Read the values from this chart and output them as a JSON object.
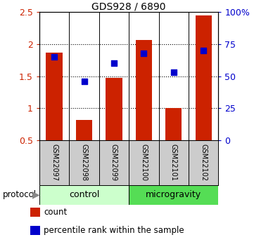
{
  "title": "GDS928 / 6890",
  "samples": [
    "GSM22097",
    "GSM22098",
    "GSM22099",
    "GSM22100",
    "GSM22101",
    "GSM22102"
  ],
  "bar_values": [
    1.87,
    0.82,
    1.47,
    2.06,
    1.0,
    2.45
  ],
  "bar_bottom": 0.5,
  "percentile_values": [
    65,
    46,
    60,
    68,
    53,
    70
  ],
  "ylim_left": [
    0.5,
    2.5
  ],
  "ylim_right": [
    0,
    100
  ],
  "yticks_left": [
    0.5,
    1.0,
    1.5,
    2.0,
    2.5
  ],
  "ytick_labels_left": [
    "0.5",
    "1",
    "1.5",
    "2",
    "2.5"
  ],
  "yticks_right": [
    0,
    25,
    50,
    75,
    100
  ],
  "ytick_labels_right": [
    "0",
    "25",
    "50",
    "75",
    "100%"
  ],
  "dotted_lines": [
    1.0,
    1.5,
    2.0
  ],
  "bar_color": "#cc2200",
  "square_color": "#0000cc",
  "protocol_groups": [
    {
      "label": "control",
      "start": 0,
      "end": 3,
      "color": "#ccffcc"
    },
    {
      "label": "microgravity",
      "start": 3,
      "end": 6,
      "color": "#55dd55"
    }
  ],
  "legend_items": [
    {
      "color": "#cc2200",
      "label": "count"
    },
    {
      "color": "#0000cc",
      "label": "percentile rank within the sample"
    }
  ],
  "left_ytick_color": "#cc2200",
  "right_ytick_color": "#0000cc",
  "bar_width": 0.55,
  "square_size": 30,
  "label_box_color": "#cccccc",
  "fig_bg": "#ffffff"
}
